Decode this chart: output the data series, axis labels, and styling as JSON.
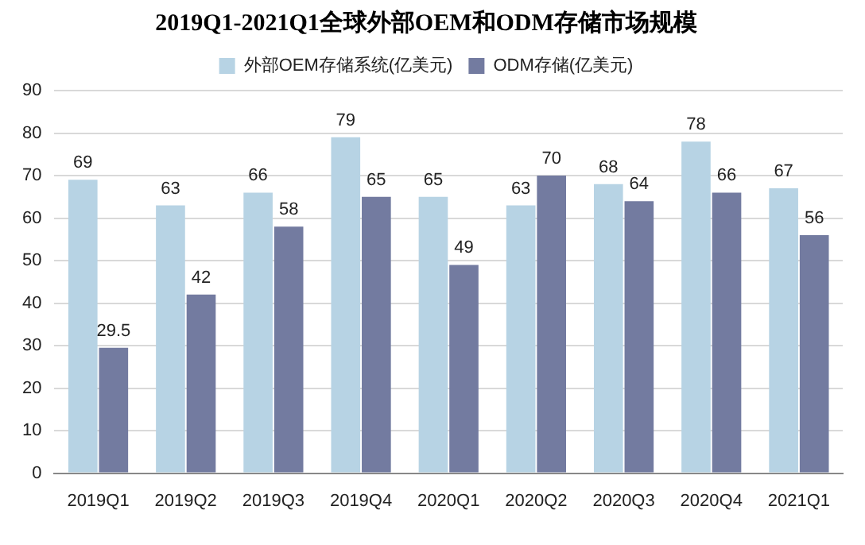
{
  "chart_data": {
    "type": "bar",
    "title": "2019Q1-2021Q1全球外部OEM和ODM存储市场规模",
    "categories": [
      "2019Q1",
      "2019Q2",
      "2019Q3",
      "2019Q4",
      "2020Q1",
      "2020Q2",
      "2020Q3",
      "2020Q4",
      "2021Q1"
    ],
    "series": [
      {
        "name": "外部OEM存储系统(亿美元)",
        "color": "#b7d3e4",
        "values": [
          69,
          63,
          66,
          79,
          65,
          63,
          68,
          78,
          67
        ]
      },
      {
        "name": "ODM存储(亿美元)",
        "color": "#737ba0",
        "values": [
          29.5,
          42,
          58,
          65,
          49,
          70,
          64,
          66,
          56
        ]
      }
    ],
    "ylim": [
      0,
      90
    ],
    "yticks": [
      0,
      10,
      20,
      30,
      40,
      50,
      60,
      70,
      80,
      90
    ],
    "grid": "y",
    "legend": "top",
    "data_labels": true
  }
}
